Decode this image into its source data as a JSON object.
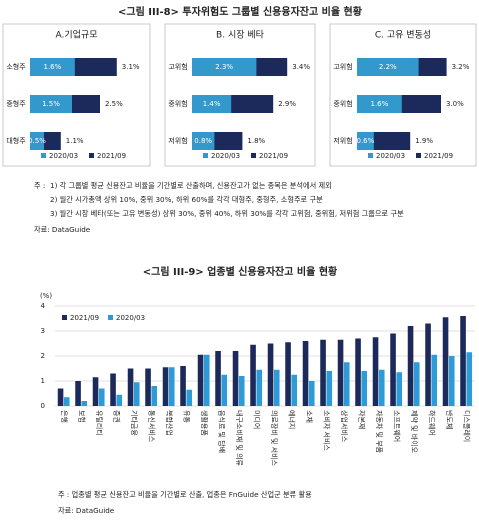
{
  "figure8": {
    "title": "<그림 III-8> 투자위험도 그룹별 신용융자잔고 비율 현황",
    "note_label": "주 :",
    "notes": [
      "1) 각 그룹별 평균 신용잔고 비율을 기간별로 산출하며, 신용잔고가 없는 종목은 분석에서 제외",
      "2) 월간 시가총액 상위 10%, 중위 30%, 하위 60%를 각각 대형주, 중형주, 소형주로 구분",
      "3) 월간 시장 베타(또는 고유 변동성) 상위 30%, 중위 40%, 하위 30%를 각각 고위험, 중위험, 저위험 그룹으로 구분"
    ],
    "source": "자료: DataGuide"
  },
  "figure9": {
    "title": "<그림 III-9> 업종별 신용융자잔고 비율 현황",
    "note": "주   : 업종별 평균 신용잔고 비율을 기간별로 산출, 업종은 FnGuide 산업군 분류 활용",
    "source": "자료: DataGuide"
  },
  "chart_data": [
    {
      "type": "bar",
      "orientation": "horizontal",
      "title": "A.기업규모",
      "categories": [
        "소형주",
        "중형주",
        "대형주"
      ],
      "series": [
        {
          "name": "2020/03",
          "color": "#3399cc",
          "values": [
            1.6,
            1.5,
            0.5
          ],
          "value_labels": [
            "1.6%",
            "1.5%",
            "0.5%"
          ]
        },
        {
          "name": "2021/09",
          "color": "#1b2a5a",
          "values": [
            3.1,
            2.5,
            1.1
          ],
          "value_labels": [
            "3.1%",
            "2.5%",
            "1.1%"
          ]
        }
      ]
    },
    {
      "type": "bar",
      "orientation": "horizontal",
      "title": "B. 시장 베타",
      "categories": [
        "고위험",
        "중위험",
        "저위험"
      ],
      "series": [
        {
          "name": "2020/03",
          "color": "#3399cc",
          "values": [
            2.3,
            1.4,
            0.8
          ],
          "value_labels": [
            "2.3%",
            "1.4%",
            "0.8%"
          ]
        },
        {
          "name": "2021/09",
          "color": "#1b2a5a",
          "values": [
            3.4,
            2.9,
            1.8
          ],
          "value_labels": [
            "3.4%",
            "2.9%",
            "1.8%"
          ]
        }
      ]
    },
    {
      "type": "bar",
      "orientation": "horizontal",
      "title": "C. 고유 변동성",
      "categories": [
        "고위험",
        "중위험",
        "저위험"
      ],
      "series": [
        {
          "name": "2020/03",
          "color": "#3399cc",
          "values": [
            2.2,
            1.6,
            0.6
          ],
          "value_labels": [
            "2.2%",
            "1.6%",
            "0.6%"
          ]
        },
        {
          "name": "2021/09",
          "color": "#1b2a5a",
          "values": [
            3.2,
            3.0,
            1.9
          ],
          "value_labels": [
            "3.2%",
            "3.0%",
            "1.9%"
          ]
        }
      ]
    },
    {
      "type": "bar",
      "orientation": "vertical",
      "ylabel": "(%)",
      "categories": [
        "은행",
        "보험",
        "유틸리티",
        "증권",
        "기타금융",
        "통신서비스",
        "복합산업",
        "유통",
        "생활용품",
        "음식료 및 담배",
        "내구소비재 및 의류",
        "미디어",
        "의료장비 및 서비스",
        "에너지",
        "소재",
        "소비자 서비스",
        "상업서비스",
        "자본재",
        "자동차 및 부품",
        "소프트웨어",
        "제약 및 바이오",
        "하드웨어",
        "반도체",
        "디스플레이"
      ],
      "series": [
        {
          "name": "2021/09",
          "color": "#1b2a5a",
          "values": [
            0.7,
            1.0,
            1.15,
            1.3,
            1.5,
            1.5,
            1.55,
            1.6,
            2.05,
            2.2,
            2.2,
            2.45,
            2.5,
            2.55,
            2.6,
            2.65,
            2.65,
            2.7,
            2.75,
            2.9,
            3.2,
            3.3,
            3.55,
            3.6
          ]
        },
        {
          "name": "2020/03",
          "color": "#2e9bd6",
          "values": [
            0.35,
            0.2,
            0.7,
            0.45,
            0.95,
            0.8,
            1.55,
            0.65,
            2.05,
            1.25,
            1.2,
            1.45,
            1.45,
            1.25,
            1.0,
            1.4,
            1.75,
            1.4,
            1.45,
            1.35,
            1.75,
            2.05,
            2.0,
            2.15
          ]
        }
      ],
      "ylim": [
        0,
        4
      ],
      "yticks": [
        0,
        1,
        2,
        3,
        4
      ],
      "grid": true
    }
  ]
}
